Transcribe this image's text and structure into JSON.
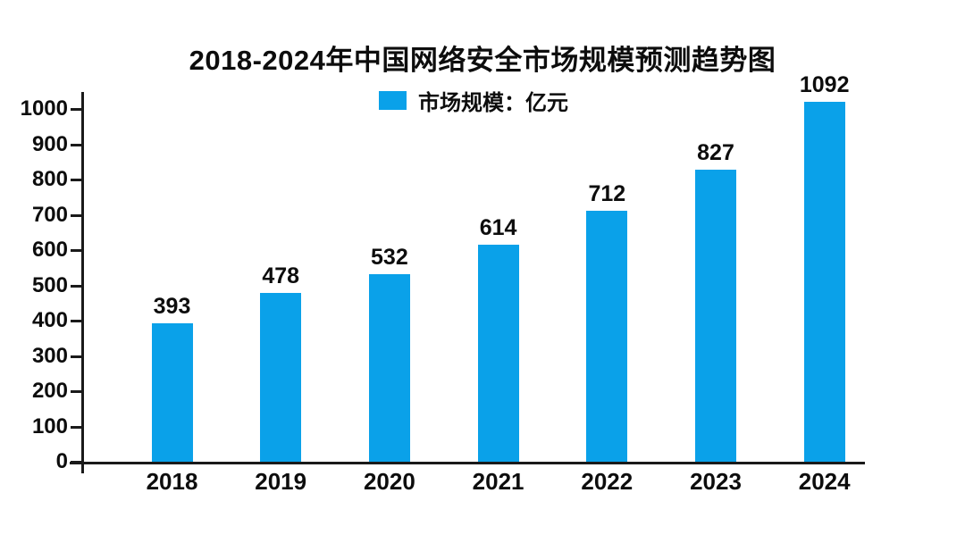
{
  "title": "2018-2024年中国网络安全市场规模预测趋势图",
  "legend": {
    "label": "市场规模：亿元",
    "swatch_color": "#0aa1e9"
  },
  "colors": {
    "bar": "#0aa1e9",
    "axis": "#1a1a1a",
    "text": "#0d0d0d",
    "background": "#ffffff"
  },
  "chart_data": {
    "type": "bar",
    "title": "2018-2024年中国网络安全市场规模预测趋势图",
    "series_name": "市场规模：亿元",
    "categories": [
      "2018",
      "2019",
      "2020",
      "2021",
      "2022",
      "2023",
      "2024"
    ],
    "values": [
      393,
      478,
      532,
      614,
      712,
      827,
      1092
    ],
    "value_labels_shown": true,
    "xlabel": "",
    "ylabel": "",
    "ylim": [
      0,
      1000
    ],
    "yticks": [
      0,
      100,
      200,
      300,
      400,
      500,
      600,
      700,
      800,
      900,
      1000
    ],
    "grid": false,
    "legend_position": "top-center",
    "bar_color": "#0aa1e9",
    "tallest_bar_clipped_at_axis_top": true
  }
}
